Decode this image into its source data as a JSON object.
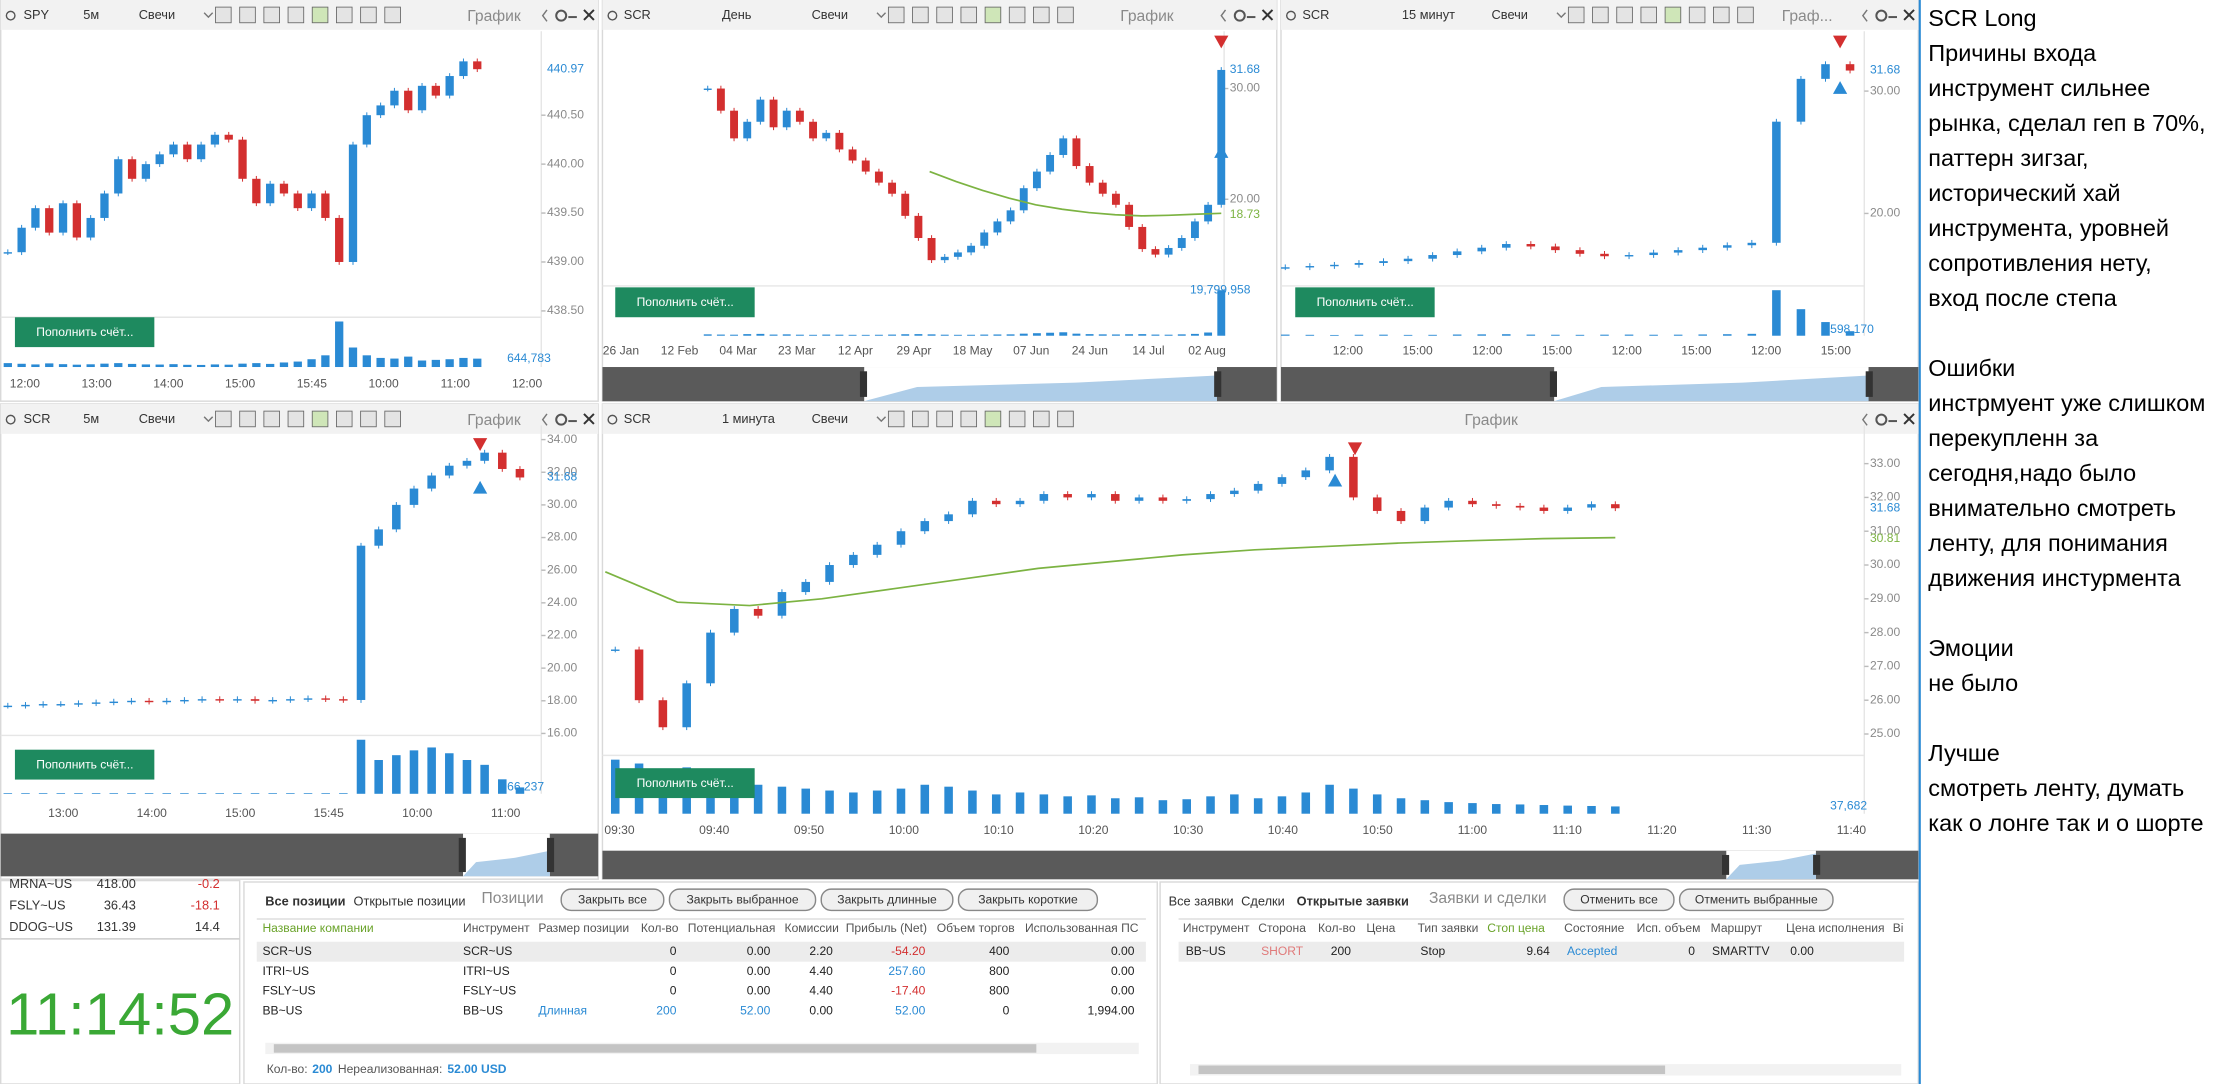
{
  "panels": [
    {
      "symbol": "SPY",
      "interval": "5м",
      "style": "Свечи",
      "title": "График",
      "ylim": [
        438.45,
        441.27
      ],
      "price_ticks": [
        {
          "value": 440.5,
          "label": "440.50"
        },
        {
          "value": 440,
          "label": "440.00"
        },
        {
          "value": 439.5,
          "label": "439.50"
        },
        {
          "value": 439,
          "label": "439.00"
        },
        {
          "value": 438.5,
          "label": "438.50"
        }
      ],
      "last_price": {
        "value": 440.97,
        "label": "440.97"
      },
      "time_labels": [
        "12:00",
        "13:00",
        "14:00",
        "15:00",
        "15:45",
        "10:00",
        "11:00",
        "12:00"
      ],
      "volume_label": {
        "value": 644783,
        "label": "644,783"
      },
      "button": "Пополнить счёт...",
      "prices": [
        439.1,
        439.35,
        439.55,
        439.3,
        439.6,
        439.25,
        439.45,
        439.7,
        440.05,
        439.85,
        440.0,
        440.1,
        440.2,
        440.05,
        440.2,
        440.3,
        440.25,
        439.85,
        439.6,
        439.8,
        439.7,
        439.55,
        439.7,
        439.45,
        439.0,
        440.2,
        440.5,
        440.6,
        440.75,
        440.55,
        440.8,
        440.7,
        440.9,
        441.05,
        440.97
      ],
      "volumes": [
        300000,
        250000,
        200000,
        280000,
        220000,
        180000,
        210000,
        260000,
        300000,
        240000,
        200000,
        190000,
        220000,
        170000,
        160000,
        200000,
        180000,
        260000,
        300000,
        240000,
        350000,
        420000,
        600000,
        900000,
        3500000,
        1500000,
        900000,
        700000,
        650000,
        800000,
        500000,
        550000,
        600000,
        700000,
        644783
      ]
    },
    {
      "symbol": "SCR",
      "interval": "День",
      "style": "Свечи",
      "title": "График",
      "ylim": [
        12.3,
        34.4
      ],
      "price_ticks": [
        {
          "value": 30,
          "label": "30.00"
        },
        {
          "value": 20,
          "label": "20.00"
        }
      ],
      "last_price": {
        "value": 31.68,
        "label": "31.68"
      },
      "ma_last": {
        "value": 18.73,
        "label": "18.73"
      },
      "time_labels": [
        "26 Jan",
        "12 Feb",
        "04 Mar",
        "23 Mar",
        "12 Apr",
        "29 Apr",
        "18 May",
        "07 Jun",
        "24 Jun",
        "14 Jul",
        "02 Aug"
      ],
      "volume_label": {
        "value": 19799958,
        "label": "19,799,958"
      },
      "button": "Пополнить счёт...",
      "prices": [
        30,
        28,
        25.5,
        27,
        29,
        26.5,
        28,
        27,
        25.5,
        26,
        24.5,
        23.5,
        22.5,
        21.5,
        20.5,
        18.5,
        16.5,
        14.5,
        14.8,
        15.2,
        15.8,
        17,
        18,
        19,
        21,
        22.5,
        24,
        25.5,
        23,
        21.5,
        20.5,
        19.5,
        17.5,
        15.5,
        15,
        15.6,
        16.5,
        18,
        19.5,
        31.68
      ],
      "volumes": [
        600000,
        500000,
        450000,
        700000,
        800000,
        500000,
        600000,
        450000,
        400000,
        500000,
        450000,
        400000,
        380000,
        420000,
        500000,
        650000,
        700000,
        600000,
        450000,
        400000,
        420000,
        500000,
        550000,
        600000,
        900000,
        1100000,
        1300000,
        1500000,
        900000,
        700000,
        600000,
        550000,
        650000,
        700000,
        500000,
        450000,
        600000,
        800000,
        1400000,
        19799958
      ],
      "ma": [
        22.5,
        21.6,
        20.8,
        20.1,
        19.5,
        19.1,
        18.8,
        18.6,
        18.5,
        18.55,
        18.65,
        18.73
      ]
    },
    {
      "symbol": "SCR",
      "interval": "15 минут",
      "style": "Свечи",
      "title": "Граф...",
      "ylim": [
        14.19,
        34.19
      ],
      "price_ticks": [
        {
          "value": 30,
          "label": "30.00"
        },
        {
          "value": 20,
          "label": "20.00"
        }
      ],
      "last_price": {
        "value": 31.68,
        "label": "31.68"
      },
      "time_labels": [
        "12:00",
        "15:00",
        "12:00",
        "15:00",
        "12:00",
        "15:00",
        "12:00",
        "15:00"
      ],
      "volume_label": {
        "value": 598170,
        "label": "598,170"
      },
      "button": "Пополнить счёт...",
      "prices": [
        15.6,
        15.7,
        15.8,
        15.95,
        16.1,
        16.3,
        16.6,
        16.9,
        17.2,
        17.5,
        17.3,
        17.0,
        16.7,
        16.5,
        16.6,
        16.8,
        17.0,
        17.2,
        17.4,
        17.6,
        27.5,
        31.0,
        32.2,
        31.68
      ],
      "volumes": [
        150000,
        120000,
        100000,
        130000,
        140000,
        110000,
        120000,
        160000,
        180000,
        200000,
        150000,
        130000,
        120000,
        140000,
        150000,
        130000,
        140000,
        170000,
        200000,
        250000,
        6000000,
        3500000,
        1800000,
        598170
      ]
    },
    {
      "symbol": "SCR",
      "interval": "5м",
      "style": "Свечи",
      "title": "График",
      "ylim": [
        16.05,
        34.35
      ],
      "price_ticks": [
        {
          "value": 34,
          "label": "34.00"
        },
        {
          "value": 32,
          "label": "32.00"
        },
        {
          "value": 30,
          "label": "30.00"
        },
        {
          "value": 28,
          "label": "28.00"
        },
        {
          "value": 26,
          "label": "26.00"
        },
        {
          "value": 24,
          "label": "24.00"
        },
        {
          "value": 22,
          "label": "22.00"
        },
        {
          "value": 20,
          "label": "20.00"
        },
        {
          "value": 18,
          "label": "18.00"
        },
        {
          "value": 16,
          "label": "16.00"
        }
      ],
      "last_price": {
        "value": 31.68,
        "label": "31.68"
      },
      "time_labels": [
        "13:00",
        "14:00",
        "15:00",
        "15:45",
        "10:00",
        "11:00"
      ],
      "volume_label": {
        "value": 66237,
        "label": "66,237"
      },
      "button": "Пополнить счёт...",
      "prices": [
        17.7,
        17.75,
        17.8,
        17.8,
        17.85,
        17.9,
        17.95,
        18.0,
        17.95,
        18.0,
        18.05,
        18.1,
        18.05,
        18.1,
        18.0,
        18.05,
        18.1,
        18.15,
        18.1,
        18.05,
        27.5,
        28.5,
        30.0,
        31.0,
        31.8,
        32.4,
        32.7,
        33.2,
        32.2,
        31.68
      ],
      "volumes": [
        3000,
        2500,
        2000,
        3500,
        2800,
        2200,
        3000,
        4000,
        3500,
        3000,
        2500,
        3000,
        2800,
        3200,
        2600,
        3000,
        3400,
        3800,
        4200,
        5000,
        560000,
        350000,
        400000,
        450000,
        480000,
        420000,
        350000,
        300000,
        150000,
        66237
      ]
    },
    {
      "symbol": "SCR",
      "interval": "1 минута",
      "style": "Свечи",
      "title": "График",
      "ylim": [
        24.62,
        33.88
      ],
      "price_ticks": [
        {
          "value": 33,
          "label": "33.00"
        },
        {
          "value": 32,
          "label": "32.00"
        },
        {
          "value": 31,
          "label": "31.00"
        },
        {
          "value": 30,
          "label": "30.00"
        },
        {
          "value": 29,
          "label": "29.00"
        },
        {
          "value": 28,
          "label": "28.00"
        },
        {
          "value": 27,
          "label": "27.00"
        },
        {
          "value": 26,
          "label": "26.00"
        },
        {
          "value": 25,
          "label": "25.00"
        }
      ],
      "last_price": {
        "value": 31.68,
        "label": "31.68"
      },
      "ma_last": {
        "value": 30.81,
        "label": "30.81"
      },
      "time_labels": [
        "09:30",
        "09:40",
        "09:50",
        "10:00",
        "10:10",
        "10:20",
        "10:30",
        "10:40",
        "10:50",
        "11:00",
        "11:10",
        "11:20",
        "11:30",
        "11:40"
      ],
      "volume_label": {
        "value": 37682,
        "label": "37,682"
      },
      "button": "Пополнить счёт...",
      "prices": [
        27.5,
        26.0,
        25.2,
        26.5,
        28.0,
        28.7,
        28.5,
        29.2,
        29.5,
        30.0,
        30.3,
        30.6,
        31.0,
        31.3,
        31.5,
        31.9,
        31.8,
        31.9,
        32.1,
        32.0,
        32.1,
        31.9,
        32.0,
        31.9,
        31.95,
        32.1,
        32.2,
        32.4,
        32.6,
        32.8,
        33.2,
        32.0,
        31.6,
        31.3,
        31.7,
        31.9,
        31.8,
        31.75,
        31.7,
        31.6,
        31.7,
        31.8,
        31.68
      ],
      "volumes": [
        280000,
        260000,
        200000,
        240000,
        180000,
        160000,
        150000,
        140000,
        130000,
        120000,
        110000,
        120000,
        130000,
        150000,
        140000,
        120000,
        100000,
        110000,
        100000,
        90000,
        95000,
        80000,
        85000,
        70000,
        75000,
        90000,
        100000,
        80000,
        90000,
        110000,
        150000,
        130000,
        100000,
        80000,
        70000,
        60000,
        55000,
        50000,
        48000,
        45000,
        42000,
        40000,
        37682
      ],
      "ma": [
        29.8,
        28.9,
        28.8,
        29.0,
        29.3,
        29.6,
        29.9,
        30.1,
        30.3,
        30.45,
        30.55,
        30.65,
        30.72,
        30.78,
        30.81
      ]
    }
  ],
  "watchlist": {
    "rows": [
      [
        "MRNA~US",
        "418.00",
        "-0.2"
      ],
      [
        "FSLY~US",
        "36.43",
        "-18.1"
      ],
      [
        "DDOG~US",
        "131.39",
        "14.4"
      ]
    ]
  },
  "clock": "11:14:52",
  "positions": {
    "tabs": [
      "Все позиции",
      "Открытые позиции"
    ],
    "label": "Позиции",
    "buttons": [
      "Закрыть все",
      "Закрыть выбранное",
      "Закрыть длинные",
      "Закрыть короткие"
    ],
    "columns": [
      "Название компании",
      "Инструмент",
      "Размер позиции",
      "Кол-во",
      "Потенциальная",
      "Комиссии",
      "Прибыль (Net)",
      "Объем торгов",
      "Использованная ПС"
    ],
    "rows": [
      [
        "SCR~US",
        "SCR~US",
        null,
        "0",
        "0.00",
        "2.20",
        "-54.20",
        "400",
        "0.00"
      ],
      [
        "ITRI~US",
        "ITRI~US",
        null,
        "0",
        "0.00",
        "4.40",
        "257.60",
        "800",
        "0.00"
      ],
      [
        "FSLY~US",
        "FSLY~US",
        null,
        "0",
        "0.00",
        "4.40",
        "-17.40",
        "800",
        "0.00"
      ],
      [
        "BB~US",
        "BB~US",
        "Длинная",
        "200",
        "52.00",
        "0.00",
        "52.00",
        "0",
        "1,994.00"
      ]
    ],
    "footer": [
      "Кол-во:",
      "200",
      "Нереализованная:",
      "52.00 USD"
    ]
  },
  "orders": {
    "tabs": [
      "Все заявки",
      "Сделки",
      "Открытые заявки"
    ],
    "label": "Заявки и сделки",
    "buttons": [
      "Отменить все",
      "Отменить выбранные"
    ],
    "columns": [
      "Инструмент",
      "Сторона",
      "Кол-во",
      "Цена",
      "Тип заявки",
      "Стоп цена",
      "Состояние",
      "Исп. объем",
      "Маршрут",
      "Цена исполнения",
      "Ві"
    ],
    "rows": [
      [
        "BB~US",
        "SHORT",
        "200",
        null,
        "Stop",
        "9.64",
        "Accepted",
        "0",
        "SMARTTV",
        "0.00",
        null
      ]
    ]
  },
  "notes": {
    "paragraphs": [
      [
        "SCR Long",
        "Причины входа",
        "инструмент сильнее",
        "рынка, сделал геп в 70%,",
        "паттерн зигзаг,",
        "исторический хай",
        "инструмента, уровней",
        "сопротивления нету,",
        "вход после степа"
      ],
      [
        "Ошибки",
        "инстрмуент уже слишком",
        "перекупленн за",
        "сегодня,надо было",
        "внимательно смотреть",
        "ленту,  для понимания",
        "движения инстурмента"
      ],
      [
        "Эмоции",
        "не было"
      ],
      [
        "Лучше",
        "смотреть ленту, думать",
        "как о лонге так и о шорте"
      ]
    ]
  }
}
